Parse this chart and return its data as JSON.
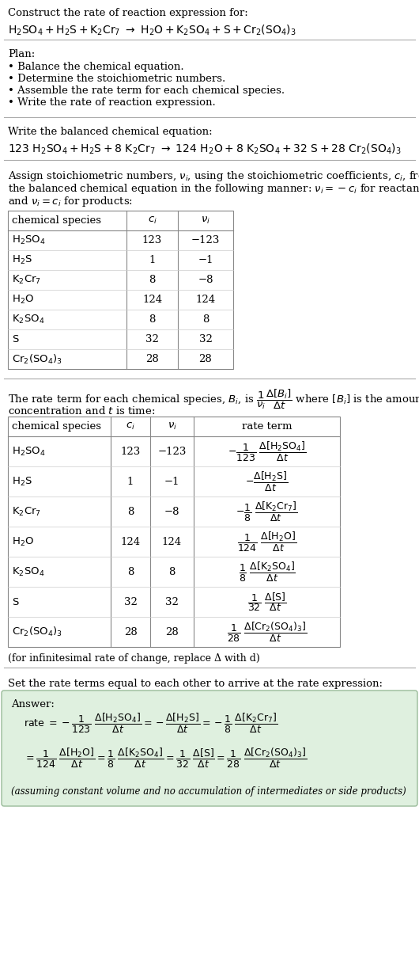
{
  "title_line": "Construct the rate of reaction expression for:",
  "plan_header": "Plan:",
  "plan_items": [
    "• Balance the chemical equation.",
    "• Determine the stoichiometric numbers.",
    "• Assemble the rate term for each chemical species.",
    "• Write the rate of reaction expression."
  ],
  "balanced_header": "Write the balanced chemical equation:",
  "table1_rows": [
    [
      "H_2SO_4",
      "123",
      "−123"
    ],
    [
      "H_2S",
      "1",
      "−1"
    ],
    [
      "K_2Cr_7",
      "8",
      "−8"
    ],
    [
      "H_2O",
      "124",
      "124"
    ],
    [
      "K_2SO_4",
      "8",
      "8"
    ],
    [
      "S",
      "32",
      "32"
    ],
    [
      "Cr_2(SO_4)_3",
      "28",
      "28"
    ]
  ],
  "table2_rows": [
    [
      "H_2SO_4",
      "123",
      "−123",
      "neg_frac_123_H2SO4"
    ],
    [
      "H_2S",
      "1",
      "−1",
      "neg_frac_H2S"
    ],
    [
      "K_2Cr_7",
      "8",
      "−8",
      "neg_frac_8_K2Cr7"
    ],
    [
      "H_2O",
      "124",
      "124",
      "frac_124_H2O"
    ],
    [
      "K_2SO_4",
      "8",
      "8",
      "frac_8_K2SO4"
    ],
    [
      "S",
      "32",
      "32",
      "frac_32_S"
    ],
    [
      "Cr_2(SO_4)_3",
      "28",
      "28",
      "frac_28_Cr2SO43"
    ]
  ],
  "infinitesimal_note": "(for infinitesimal rate of change, replace Δ with d)",
  "set_equal_header": "Set the rate terms equal to each other to arrive at the rate expression:",
  "answer_box_color": "#dff0df",
  "answer_label": "Answer:",
  "answer_note": "(assuming constant volume and no accumulation of intermediates or side products)",
  "bg_color": "#ffffff",
  "text_color": "#000000"
}
